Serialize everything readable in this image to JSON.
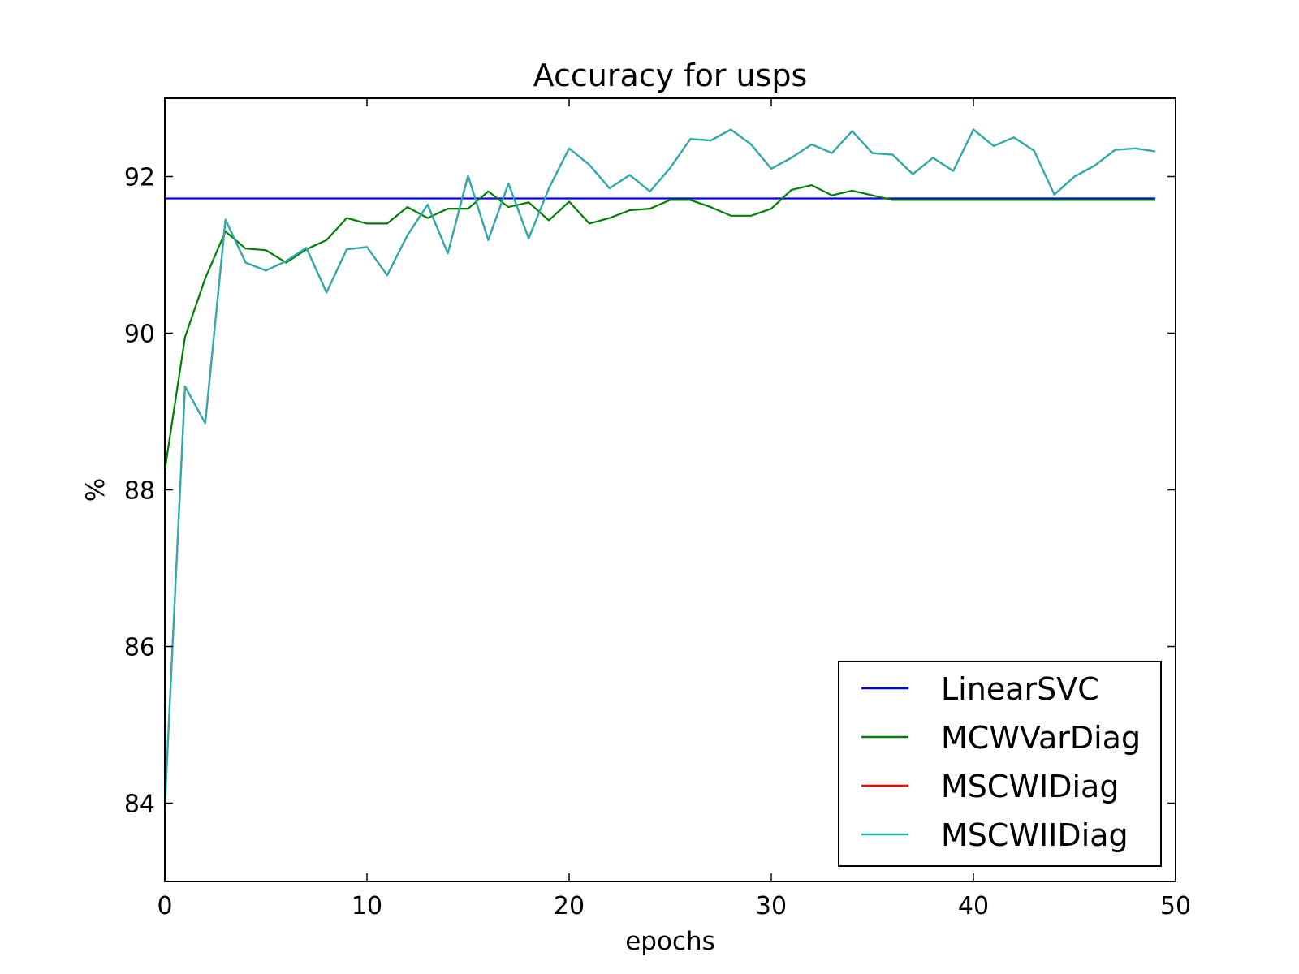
{
  "chart_data": {
    "type": "line",
    "title": "Accuracy for usps",
    "xlabel": "epochs",
    "ylabel": "%",
    "xlim": [
      0,
      50
    ],
    "ylim": [
      83,
      93
    ],
    "xticks": [
      0,
      10,
      20,
      30,
      40,
      50
    ],
    "yticks": [
      84,
      86,
      88,
      90,
      92
    ],
    "grid": false,
    "legend_position": "lower-right",
    "series": [
      {
        "name": "LinearSVC",
        "color": "#0000ff",
        "x": [
          0,
          49
        ],
        "values": [
          91.72,
          91.72
        ]
      },
      {
        "name": "MCWVarDiag",
        "color": "#008000",
        "x": [
          0,
          1,
          2,
          3,
          4,
          5,
          6,
          7,
          8,
          9,
          10,
          11,
          12,
          13,
          14,
          15,
          16,
          17,
          18,
          19,
          20,
          21,
          22,
          23,
          24,
          25,
          26,
          27,
          28,
          29,
          30,
          31,
          32,
          33,
          34,
          35,
          36,
          37,
          38,
          39,
          40,
          41,
          42,
          43,
          44,
          45,
          46,
          47,
          48,
          49
        ],
        "values": [
          88.25,
          89.95,
          90.7,
          91.3,
          91.08,
          91.06,
          90.9,
          91.07,
          91.19,
          91.47,
          91.4,
          91.4,
          91.61,
          91.47,
          91.59,
          91.59,
          91.81,
          91.61,
          91.67,
          91.44,
          91.68,
          91.4,
          91.47,
          91.57,
          91.59,
          91.7,
          91.7,
          91.61,
          91.5,
          91.5,
          91.59,
          91.83,
          91.89,
          91.76,
          91.82,
          91.76,
          91.7,
          91.7,
          91.7,
          91.7,
          91.7,
          91.7,
          91.7,
          91.7,
          91.7,
          91.7,
          91.7,
          91.7,
          91.7,
          91.7
        ]
      },
      {
        "name": "MSCWIDiag",
        "color": "#ff0000",
        "x": [
          0,
          1,
          2,
          3,
          4,
          5,
          6,
          7,
          8,
          9,
          10,
          11,
          12,
          13,
          14,
          15,
          16,
          17,
          18,
          19,
          20,
          21,
          22,
          23,
          24,
          25,
          26,
          27,
          28,
          29,
          30,
          31,
          32,
          33,
          34,
          35,
          36,
          37,
          38,
          39,
          40,
          41,
          42,
          43,
          44,
          45,
          46,
          47,
          48,
          49
        ],
        "values": [
          83.95,
          89.32,
          88.85,
          91.45,
          90.9,
          90.8,
          90.92,
          91.09,
          90.52,
          91.07,
          91.1,
          90.74,
          91.25,
          91.64,
          91.02,
          92.01,
          91.19,
          91.91,
          91.21,
          91.85,
          92.36,
          92.15,
          91.85,
          92.02,
          91.81,
          92.11,
          92.48,
          92.46,
          92.6,
          92.41,
          92.1,
          92.24,
          92.41,
          92.3,
          92.58,
          92.3,
          92.28,
          92.03,
          92.24,
          92.07,
          92.6,
          92.39,
          92.5,
          92.33,
          91.77,
          92.0,
          92.14,
          92.34,
          92.36,
          92.32
        ]
      },
      {
        "name": "MSCWIIDiag",
        "color": "#20b2b2",
        "x": [
          0,
          1,
          2,
          3,
          4,
          5,
          6,
          7,
          8,
          9,
          10,
          11,
          12,
          13,
          14,
          15,
          16,
          17,
          18,
          19,
          20,
          21,
          22,
          23,
          24,
          25,
          26,
          27,
          28,
          29,
          30,
          31,
          32,
          33,
          34,
          35,
          36,
          37,
          38,
          39,
          40,
          41,
          42,
          43,
          44,
          45,
          46,
          47,
          48,
          49
        ],
        "values": [
          83.95,
          89.32,
          88.85,
          91.45,
          90.9,
          90.8,
          90.92,
          91.09,
          90.52,
          91.07,
          91.1,
          90.74,
          91.25,
          91.64,
          91.02,
          92.01,
          91.19,
          91.91,
          91.21,
          91.85,
          92.36,
          92.15,
          91.85,
          92.02,
          91.81,
          92.11,
          92.48,
          92.46,
          92.6,
          92.41,
          92.1,
          92.24,
          92.41,
          92.3,
          92.58,
          92.3,
          92.28,
          92.03,
          92.24,
          92.07,
          92.6,
          92.39,
          92.5,
          92.33,
          91.77,
          92.0,
          92.14,
          92.34,
          92.36,
          92.32
        ]
      }
    ]
  }
}
